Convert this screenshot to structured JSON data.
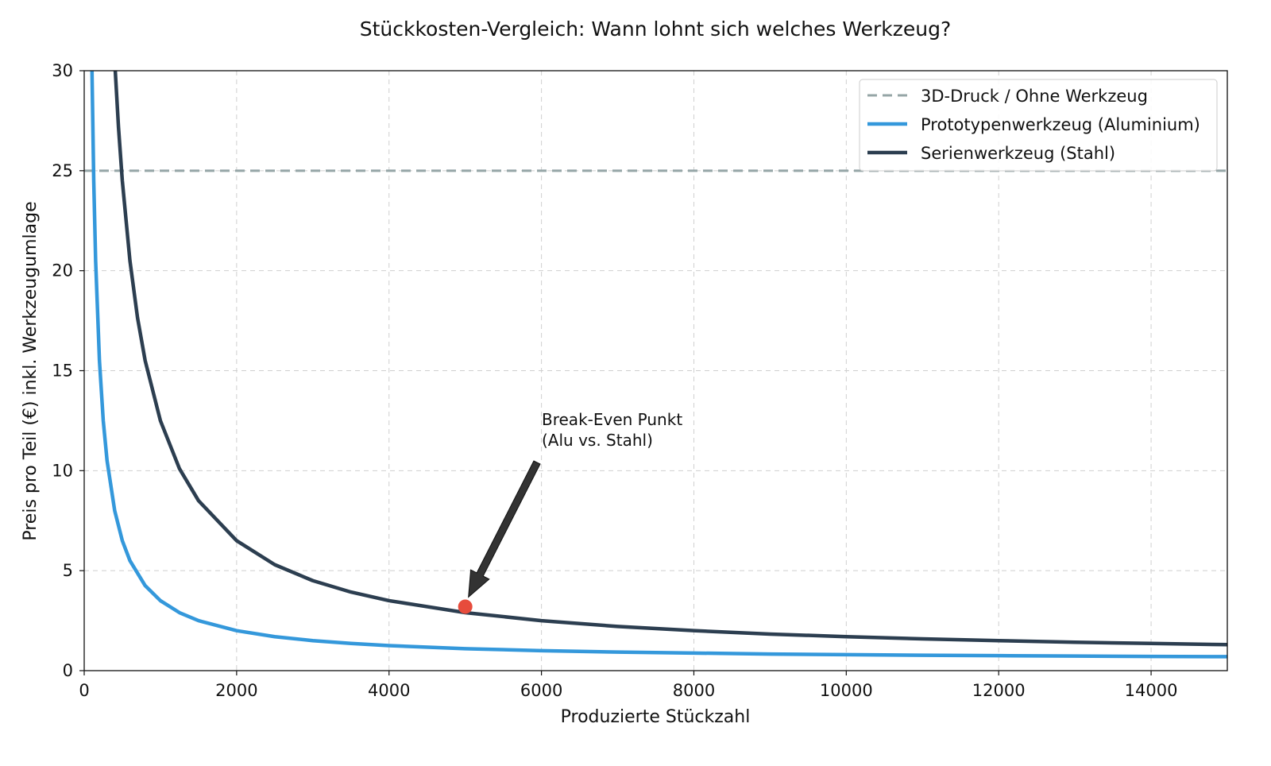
{
  "chart_data": {
    "type": "line",
    "title": "Stückkosten-Vergleich: Wann lohnt sich welches Werkzeug?",
    "xlabel": "Produzierte Stückzahl",
    "ylabel": "Preis pro Teil (€) inkl. Werkzeugumlage",
    "xlim": [
      0,
      15000
    ],
    "ylim": [
      0,
      30
    ],
    "x_ticks": [
      "0",
      "2000",
      "4000",
      "6000",
      "8000",
      "10000",
      "12000",
      "14000"
    ],
    "y_ticks": [
      "0",
      "5",
      "10",
      "15",
      "20",
      "25",
      "30"
    ],
    "grid": true,
    "legend_position": "top-right",
    "series": [
      {
        "name": "3D-Druck / Ohne Werkzeug",
        "style": "dashed",
        "color": "#95a5a6",
        "x": [
          0,
          15000
        ],
        "y": [
          25,
          25
        ]
      },
      {
        "name": "Prototypenwerkzeug (Aluminium)",
        "style": "solid",
        "color": "#3498db",
        "x": [
          100,
          125,
          150,
          200,
          250,
          300,
          400,
          500,
          600,
          800,
          1000,
          1250,
          1500,
          2000,
          2500,
          3000,
          3500,
          4000,
          5000,
          6000,
          7000,
          8000,
          9000,
          10000,
          11000,
          12000,
          13000,
          14000,
          15000
        ],
        "y": [
          30.5,
          24.5,
          20.5,
          15.5,
          12.5,
          10.5,
          8.0,
          6.5,
          5.5,
          4.25,
          3.5,
          2.9,
          2.5,
          2.0,
          1.7,
          1.5,
          1.36,
          1.25,
          1.1,
          1.0,
          0.93,
          0.88,
          0.83,
          0.8,
          0.77,
          0.75,
          0.73,
          0.71,
          0.7
        ]
      },
      {
        "name": "Serienwerkzeug (Stahl)",
        "style": "solid",
        "color": "#2c3e50",
        "x": [
          400,
          450,
          500,
          600,
          700,
          800,
          1000,
          1250,
          1500,
          2000,
          2500,
          3000,
          3500,
          4000,
          5000,
          6000,
          7000,
          8000,
          9000,
          10000,
          11000,
          12000,
          13000,
          14000,
          15000
        ],
        "y": [
          30.5,
          27.17,
          24.5,
          20.5,
          17.64,
          15.5,
          12.5,
          10.1,
          8.5,
          6.5,
          5.3,
          4.5,
          3.93,
          3.5,
          2.9,
          2.5,
          2.21,
          2.0,
          1.83,
          1.7,
          1.59,
          1.5,
          1.42,
          1.36,
          1.3
        ]
      }
    ],
    "annotations": [
      {
        "text_line1": "Break-Even Punkt",
        "text_line2": "(Alu vs. Stahl)",
        "point_x": 5000,
        "point_y": 3.2,
        "point_color": "#e74c3c",
        "arrow_color": "#333333"
      }
    ]
  }
}
